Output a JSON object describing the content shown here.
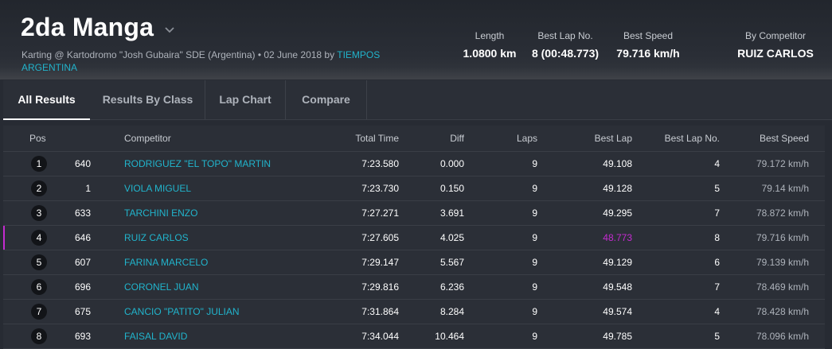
{
  "header": {
    "title": "2da Manga",
    "subtitle_prefix": "Karting @ Kartodromo \"Josh Gubaira\" SDE (Argentina) • 02 June 2018 by",
    "subtitle_link": "TIEMPOS ARGENTINA",
    "stats": {
      "length_label": "Length",
      "length_value": "1.0800 km",
      "best_lap_no_label": "Best Lap No.",
      "best_lap_no_value": "8 (00:48.773)",
      "best_speed_label": "Best Speed",
      "best_speed_value": "79.716 km/h",
      "by_competitor_label": "By Competitor",
      "by_competitor_value": "RUIZ CARLOS"
    }
  },
  "tabs": [
    "All Results",
    "Results By Class",
    "Lap Chart",
    "Compare"
  ],
  "table": {
    "columns": {
      "pos": "Pos",
      "competitor": "Competitor",
      "total_time": "Total Time",
      "diff": "Diff",
      "laps": "Laps",
      "best_lap": "Best Lap",
      "best_lap_no": "Best Lap No.",
      "best_speed": "Best Speed"
    },
    "rows": [
      {
        "pos": "1",
        "num": "640",
        "competitor": "RODRIGUEZ \"EL TOPO\" MARTIN",
        "total_time": "7:23.580",
        "diff": "0.000",
        "laps": "9",
        "best_lap": "49.108",
        "best_lap_no": "4",
        "best_speed": "79.172 km/h",
        "highlight": false
      },
      {
        "pos": "2",
        "num": "1",
        "competitor": "VIOLA MIGUEL",
        "total_time": "7:23.730",
        "diff": "0.150",
        "laps": "9",
        "best_lap": "49.128",
        "best_lap_no": "5",
        "best_speed": "79.14 km/h",
        "highlight": false
      },
      {
        "pos": "3",
        "num": "633",
        "competitor": "TARCHINI ENZO",
        "total_time": "7:27.271",
        "diff": "3.691",
        "laps": "9",
        "best_lap": "49.295",
        "best_lap_no": "7",
        "best_speed": "78.872 km/h",
        "highlight": false
      },
      {
        "pos": "4",
        "num": "646",
        "competitor": "RUIZ CARLOS",
        "total_time": "7:27.605",
        "diff": "4.025",
        "laps": "9",
        "best_lap": "48.773",
        "best_lap_no": "8",
        "best_speed": "79.716 km/h",
        "highlight": true
      },
      {
        "pos": "5",
        "num": "607",
        "competitor": "FARINA MARCELO",
        "total_time": "7:29.147",
        "diff": "5.567",
        "laps": "9",
        "best_lap": "49.129",
        "best_lap_no": "6",
        "best_speed": "79.139 km/h",
        "highlight": false
      },
      {
        "pos": "6",
        "num": "696",
        "competitor": "CORONEL JUAN",
        "total_time": "7:29.816",
        "diff": "6.236",
        "laps": "9",
        "best_lap": "49.548",
        "best_lap_no": "7",
        "best_speed": "78.469 km/h",
        "highlight": false
      },
      {
        "pos": "7",
        "num": "675",
        "competitor": "CANCIO \"PATITO\" JULIAN",
        "total_time": "7:31.864",
        "diff": "8.284",
        "laps": "9",
        "best_lap": "49.574",
        "best_lap_no": "4",
        "best_speed": "78.428 km/h",
        "highlight": false
      },
      {
        "pos": "8",
        "num": "693",
        "competitor": "FAISAL DAVID",
        "total_time": "7:34.044",
        "diff": "10.464",
        "laps": "9",
        "best_lap": "49.785",
        "best_lap_no": "5",
        "best_speed": "78.096 km/h",
        "highlight": false
      }
    ]
  },
  "colors": {
    "background": "#272b33",
    "link": "#21b4cc",
    "best_lap_highlight": "#c42bd0"
  },
  "icons": {
    "title_dropdown": "chevron-down-icon"
  }
}
